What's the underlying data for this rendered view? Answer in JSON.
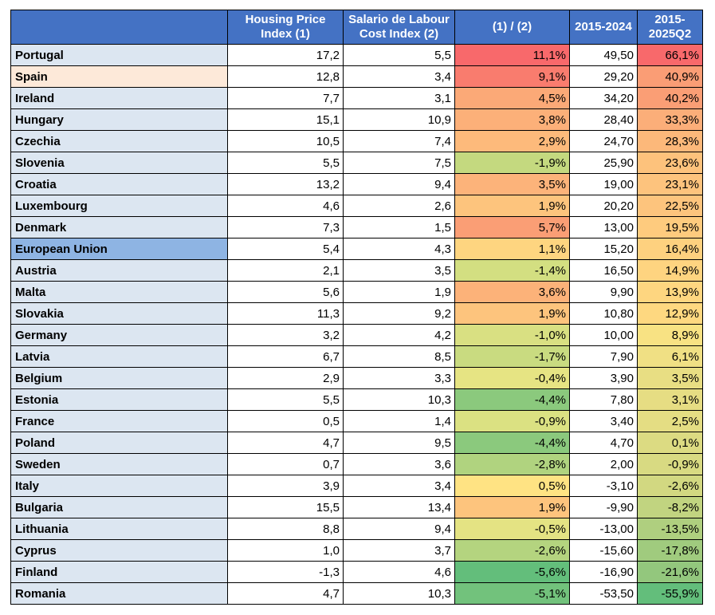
{
  "table": {
    "headers": [
      "",
      "Housing Price Index (1)",
      "Salario de Labour Cost Index (2)",
      "(1) / (2)",
      "2015-2024",
      "2015-2025Q2"
    ],
    "rows": [
      {
        "country": "Portugal",
        "hpi": "17,2",
        "lci": "5,5",
        "ratio": "11,1%",
        "p1": "49,50",
        "p2": "66,1%",
        "ratio_color": "#f8696b",
        "p2_color": "#f8696b"
      },
      {
        "country": "Spain",
        "hpi": "12,8",
        "lci": "3,4",
        "ratio": "9,1%",
        "p1": "29,20",
        "p2": "40,9%",
        "ratio_color": "#f97c6e",
        "p2_color": "#fa9d75"
      },
      {
        "country": "Ireland",
        "hpi": "7,7",
        "lci": "3,1",
        "ratio": "4,5%",
        "p1": "34,20",
        "p2": "40,2%",
        "ratio_color": "#fba977",
        "p2_color": "#fa9e75"
      },
      {
        "country": "Hungary",
        "hpi": "15,1",
        "lci": "10,9",
        "ratio": "3,8%",
        "p1": "28,40",
        "p2": "33,3%",
        "ratio_color": "#fcb079",
        "p2_color": "#fbae79"
      },
      {
        "country": "Czechia",
        "hpi": "10,5",
        "lci": "7,4",
        "ratio": "2,9%",
        "p1": "24,70",
        "p2": "28,3%",
        "ratio_color": "#fdba7b",
        "p2_color": "#fcb87a"
      },
      {
        "country": "Slovenia",
        "hpi": "5,5",
        "lci": "7,5",
        "ratio": "-1,9%",
        "p1": "25,90",
        "p2": "23,6%",
        "ratio_color": "#c4d97f",
        "p2_color": "#fdc27c"
      },
      {
        "country": "Croatia",
        "hpi": "13,2",
        "lci": "9,4",
        "ratio": "3,5%",
        "p1": "19,00",
        "p2": "23,1%",
        "ratio_color": "#fcb37a",
        "p2_color": "#fdc37d"
      },
      {
        "country": "Luxembourg",
        "hpi": "4,6",
        "lci": "2,6",
        "ratio": "1,9%",
        "p1": "20,20",
        "p2": "22,5%",
        "ratio_color": "#fdc47d",
        "p2_color": "#fdc47d"
      },
      {
        "country": "Denmark",
        "hpi": "7,3",
        "lci": "1,5",
        "ratio": "5,7%",
        "p1": "13,00",
        "p2": "19,5%",
        "ratio_color": "#fa9e75",
        "p2_color": "#fecb7e"
      },
      {
        "country": "European Union",
        "hpi": "5,4",
        "lci": "4,3",
        "ratio": "1,1%",
        "p1": "15,20",
        "p2": "16,4%",
        "ratio_color": "#fed580",
        "p2_color": "#fed17f"
      },
      {
        "country": "Austria",
        "hpi": "2,1",
        "lci": "3,5",
        "ratio": "-1,4%",
        "p1": "16,50",
        "p2": "14,9%",
        "ratio_color": "#d3df81",
        "p2_color": "#fed480"
      },
      {
        "country": "Malta",
        "hpi": "5,6",
        "lci": "1,9",
        "ratio": "3,6%",
        "p1": "9,90",
        "p2": "13,9%",
        "ratio_color": "#fcb279",
        "p2_color": "#fed680"
      },
      {
        "country": "Slovakia",
        "hpi": "11,3",
        "lci": "9,2",
        "ratio": "1,9%",
        "p1": "10,80",
        "p2": "12,9%",
        "ratio_color": "#fdc47d",
        "p2_color": "#fed880"
      },
      {
        "country": "Germany",
        "hpi": "3,2",
        "lci": "4,2",
        "ratio": "-1,0%",
        "p1": "10,00",
        "p2": "8,9%",
        "ratio_color": "#d9e082",
        "p2_color": "#f8e283"
      },
      {
        "country": "Latvia",
        "hpi": "6,7",
        "lci": "8,5",
        "ratio": "-1,7%",
        "p1": "7,90",
        "p2": "6,1%",
        "ratio_color": "#c9db80",
        "p2_color": "#f0e084"
      },
      {
        "country": "Belgium",
        "hpi": "2,9",
        "lci": "3,3",
        "ratio": "-0,4%",
        "p1": "3,90",
        "p2": "3,5%",
        "ratio_color": "#e6e483",
        "p2_color": "#e8de83"
      },
      {
        "country": "Estonia",
        "hpi": "5,5",
        "lci": "10,3",
        "ratio": "-4,4%",
        "p1": "7,80",
        "p2": "3,1%",
        "ratio_color": "#8bc97d",
        "p2_color": "#e6dd83"
      },
      {
        "country": "France",
        "hpi": "0,5",
        "lci": "1,4",
        "ratio": "-0,9%",
        "p1": "3,40",
        "p2": "2,5%",
        "ratio_color": "#dbe182",
        "p2_color": "#e4dd83"
      },
      {
        "country": "Poland",
        "hpi": "4,7",
        "lci": "9,5",
        "ratio": "-4,4%",
        "p1": "4,70",
        "p2": "0,1%",
        "ratio_color": "#8bc97d",
        "p2_color": "#dcdb82"
      },
      {
        "country": "Sweden",
        "hpi": "0,7",
        "lci": "3,6",
        "ratio": "-2,8%",
        "p1": "2,00",
        "p2": "-0,9%",
        "ratio_color": "#b0d37f",
        "p2_color": "#d8da82"
      },
      {
        "country": "Italy",
        "hpi": "3,9",
        "lci": "3,4",
        "ratio": "0,5%",
        "p1": "-3,10",
        "p2": "-2,6%",
        "ratio_color": "#ffe383",
        "p2_color": "#d2d881"
      },
      {
        "country": "Bulgaria",
        "hpi": "15,5",
        "lci": "13,4",
        "ratio": "1,9%",
        "p1": "-9,90",
        "p2": "-8,2%",
        "ratio_color": "#fdc47d",
        "p2_color": "#c1d480"
      },
      {
        "country": "Lithuania",
        "hpi": "8,8",
        "lci": "9,4",
        "ratio": "-0,5%",
        "p1": "-13,00",
        "p2": "-13,5%",
        "ratio_color": "#e4e383",
        "p2_color": "#afcf7f"
      },
      {
        "country": "Cyprus",
        "hpi": "1,0",
        "lci": "3,7",
        "ratio": "-2,6%",
        "p1": "-15,60",
        "p2": "-17,8%",
        "ratio_color": "#b4d47f",
        "p2_color": "#a0cb7e"
      },
      {
        "country": "Finland",
        "hpi": "-1,3",
        "lci": "4,6",
        "ratio": "-5,6%",
        "p1": "-16,90",
        "p2": "-21,6%",
        "ratio_color": "#63be7b",
        "p2_color": "#93c77d"
      },
      {
        "country": "Romania",
        "hpi": "4,7",
        "lci": "10,3",
        "ratio": "-5,1%",
        "p1": "-53,50",
        "p2": "-55,9%",
        "ratio_color": "#72c27c",
        "p2_color": "#63be7b"
      }
    ]
  }
}
